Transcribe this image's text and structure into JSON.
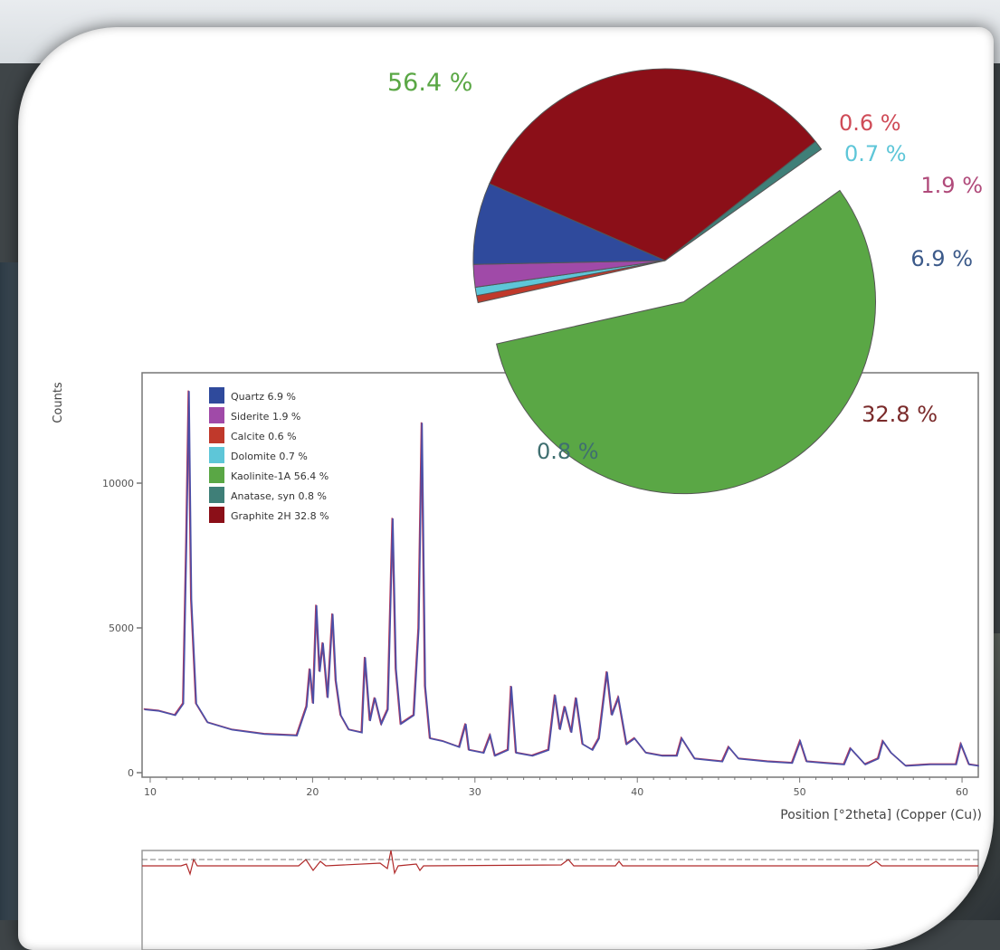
{
  "chart_data": [
    {
      "type": "pie",
      "slices": [
        {
          "label": "Kaolinite-1A",
          "value": 56.4,
          "display": "56.4 %",
          "color": "#5aa745",
          "label_color": "#5aa745",
          "exploded": true
        },
        {
          "label": "Calcite",
          "value": 0.6,
          "display": "0.6 %",
          "color": "#c0392b",
          "label_color": "#cf4b57"
        },
        {
          "label": "Dolomite",
          "value": 0.7,
          "display": "0.7 %",
          "color": "#5ec6d8",
          "label_color": "#5ec6d8"
        },
        {
          "label": "Siderite",
          "value": 1.9,
          "display": "1.9 %",
          "color": "#a04aa8",
          "label_color": "#b04a7a"
        },
        {
          "label": "Quartz",
          "value": 6.9,
          "display": "6.9 %",
          "color": "#2f4a9c",
          "label_color": "#3c5a8a"
        },
        {
          "label": "Graphite 2H",
          "value": 32.8,
          "display": "32.8 %",
          "color": "#8b0f18",
          "label_color": "#7a2a2a"
        },
        {
          "label": "Anatase, syn",
          "value": 0.8,
          "display": "0.8 %",
          "color": "#3f7f78",
          "label_color": "#3f6f70"
        }
      ]
    },
    {
      "type": "line",
      "ylabel": "Counts",
      "xlabel": "Position [°2theta] (Copper (Cu))",
      "xlim": [
        9.5,
        61
      ],
      "ylim": [
        0,
        13500
      ],
      "x_ticks": [
        10,
        20,
        30,
        40,
        50,
        60
      ],
      "y_ticks": [
        0,
        5000,
        10000
      ],
      "legend": {
        "position": "top-left",
        "items": [
          {
            "text": "Quartz 6.9 %",
            "color": "#2f4a9c"
          },
          {
            "text": "Siderite 1.9 %",
            "color": "#a04aa8"
          },
          {
            "text": "Calcite 0.6 %",
            "color": "#c0392b"
          },
          {
            "text": "Dolomite 0.7 %",
            "color": "#5ec6d8"
          },
          {
            "text": "Kaolinite-1A 56.4 %",
            "color": "#5aa745"
          },
          {
            "text": "Anatase, syn 0.8 %",
            "color": "#3f7f78"
          },
          {
            "text": "Graphite 2H 32.8 %",
            "color": "#8b0f18"
          }
        ]
      },
      "series": [
        {
          "line_colors": [
            "#b23a5f",
            "#4a4fa8"
          ],
          "x": [
            9.6,
            10.5,
            11.5,
            12.0,
            12.2,
            12.35,
            12.5,
            12.8,
            13.5,
            15,
            17,
            19,
            19.6,
            19.8,
            20.0,
            20.2,
            20.4,
            20.6,
            20.9,
            21.2,
            21.4,
            21.7,
            22.2,
            23.0,
            23.2,
            23.5,
            23.8,
            24.2,
            24.6,
            24.9,
            25.1,
            25.4,
            26.2,
            26.5,
            26.7,
            26.9,
            27.2,
            28,
            29,
            29.4,
            29.6,
            30.5,
            30.9,
            31.2,
            32.0,
            32.2,
            32.5,
            33.5,
            34.5,
            34.9,
            35.2,
            35.5,
            35.9,
            36.2,
            36.6,
            37.2,
            37.6,
            38.1,
            38.4,
            38.8,
            39.3,
            39.8,
            40.5,
            41.5,
            42.4,
            42.7,
            43.5,
            45.2,
            45.6,
            46.2,
            48,
            49.5,
            50.0,
            50.4,
            51.5,
            52.7,
            53.1,
            54.0,
            54.8,
            55.1,
            55.6,
            56.5,
            58,
            59.6,
            59.9,
            60.4,
            61
          ],
          "y": [
            2200,
            2150,
            2000,
            2400,
            8000,
            13200,
            6000,
            2400,
            1750,
            1500,
            1350,
            1300,
            2300,
            3600,
            2400,
            5800,
            3500,
            4500,
            2600,
            5500,
            3200,
            2000,
            1500,
            1400,
            4000,
            1800,
            2600,
            1700,
            2200,
            8800,
            3600,
            1700,
            2000,
            5000,
            12100,
            3000,
            1200,
            1100,
            900,
            1700,
            800,
            700,
            1300,
            600,
            800,
            3000,
            700,
            600,
            800,
            2700,
            1500,
            2300,
            1400,
            2600,
            1000,
            800,
            1200,
            3500,
            2000,
            2600,
            1000,
            1200,
            700,
            600,
            600,
            1200,
            500,
            400,
            900,
            500,
            400,
            350,
            1100,
            400,
            350,
            300,
            850,
            300,
            500,
            1100,
            700,
            250,
            300,
            300,
            1000,
            300,
            250
          ]
        }
      ]
    }
  ]
}
